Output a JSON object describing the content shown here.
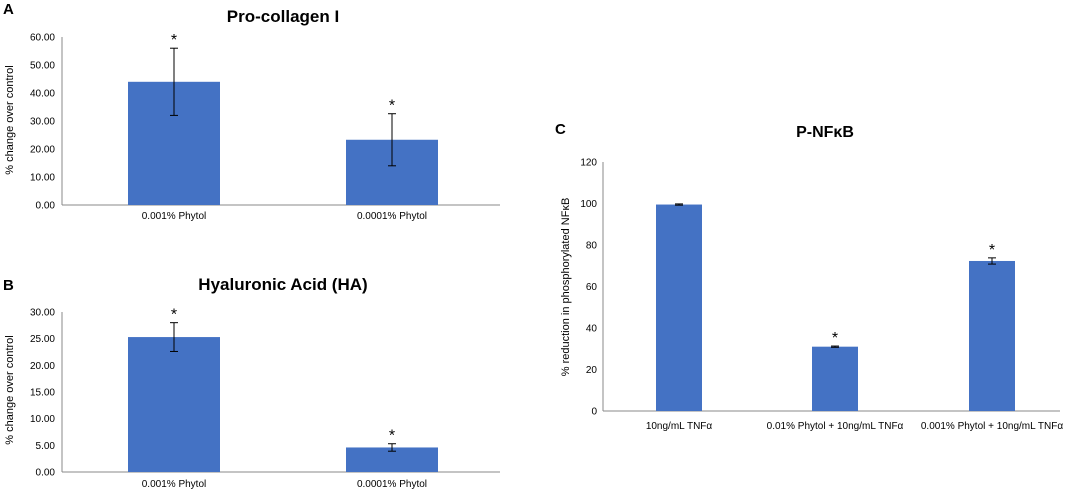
{
  "chart_data": [
    {
      "id": "A",
      "panel_label": "A",
      "type": "bar",
      "title": "Pro-collagen I",
      "ylabel": "% change over control",
      "xlabel": "",
      "categories": [
        "0.001% Phytol",
        "0.0001% Phytol"
      ],
      "values": [
        44.0,
        23.3
      ],
      "errors": [
        12.0,
        9.3
      ],
      "significance": [
        "*",
        "*"
      ],
      "ylim": [
        0,
        60
      ],
      "yticks": [
        "0.00",
        "10.00",
        "20.00",
        "30.00",
        "40.00",
        "50.00",
        "60.00"
      ],
      "grid": false,
      "bar_color": "#4472C4"
    },
    {
      "id": "B",
      "panel_label": "B",
      "type": "bar",
      "title": "Hyaluronic Acid (HA)",
      "ylabel": "% change over control",
      "xlabel": "",
      "categories": [
        "0.001% Phytol",
        "0.0001% Phytol"
      ],
      "values": [
        25.3,
        4.6
      ],
      "errors": [
        2.7,
        0.7
      ],
      "significance": [
        "*",
        "*"
      ],
      "ylim": [
        0,
        30
      ],
      "yticks": [
        "0.00",
        "5.00",
        "10.00",
        "15.00",
        "20.00",
        "25.00",
        "30.00"
      ],
      "grid": false,
      "bar_color": "#4472C4"
    },
    {
      "id": "C",
      "panel_label": "C",
      "type": "bar",
      "title": "P-NFκB",
      "ylabel": "% reduction in phosphorylated NFκB",
      "xlabel": "",
      "categories": [
        "10ng/mL TNFα",
        "0.01% Phytol + 10ng/mL TNFα",
        "0.001% Phytol + 10ng/mL TNFα"
      ],
      "values": [
        99.5,
        31.0,
        72.3
      ],
      "errors": [
        0.3,
        0.3,
        1.5
      ],
      "significance": [
        "",
        "*",
        "*"
      ],
      "ylim": [
        0,
        120
      ],
      "yticks": [
        "0",
        "20",
        "40",
        "60",
        "80",
        "100",
        "120"
      ],
      "grid": false,
      "bar_color": "#4472C4"
    }
  ]
}
